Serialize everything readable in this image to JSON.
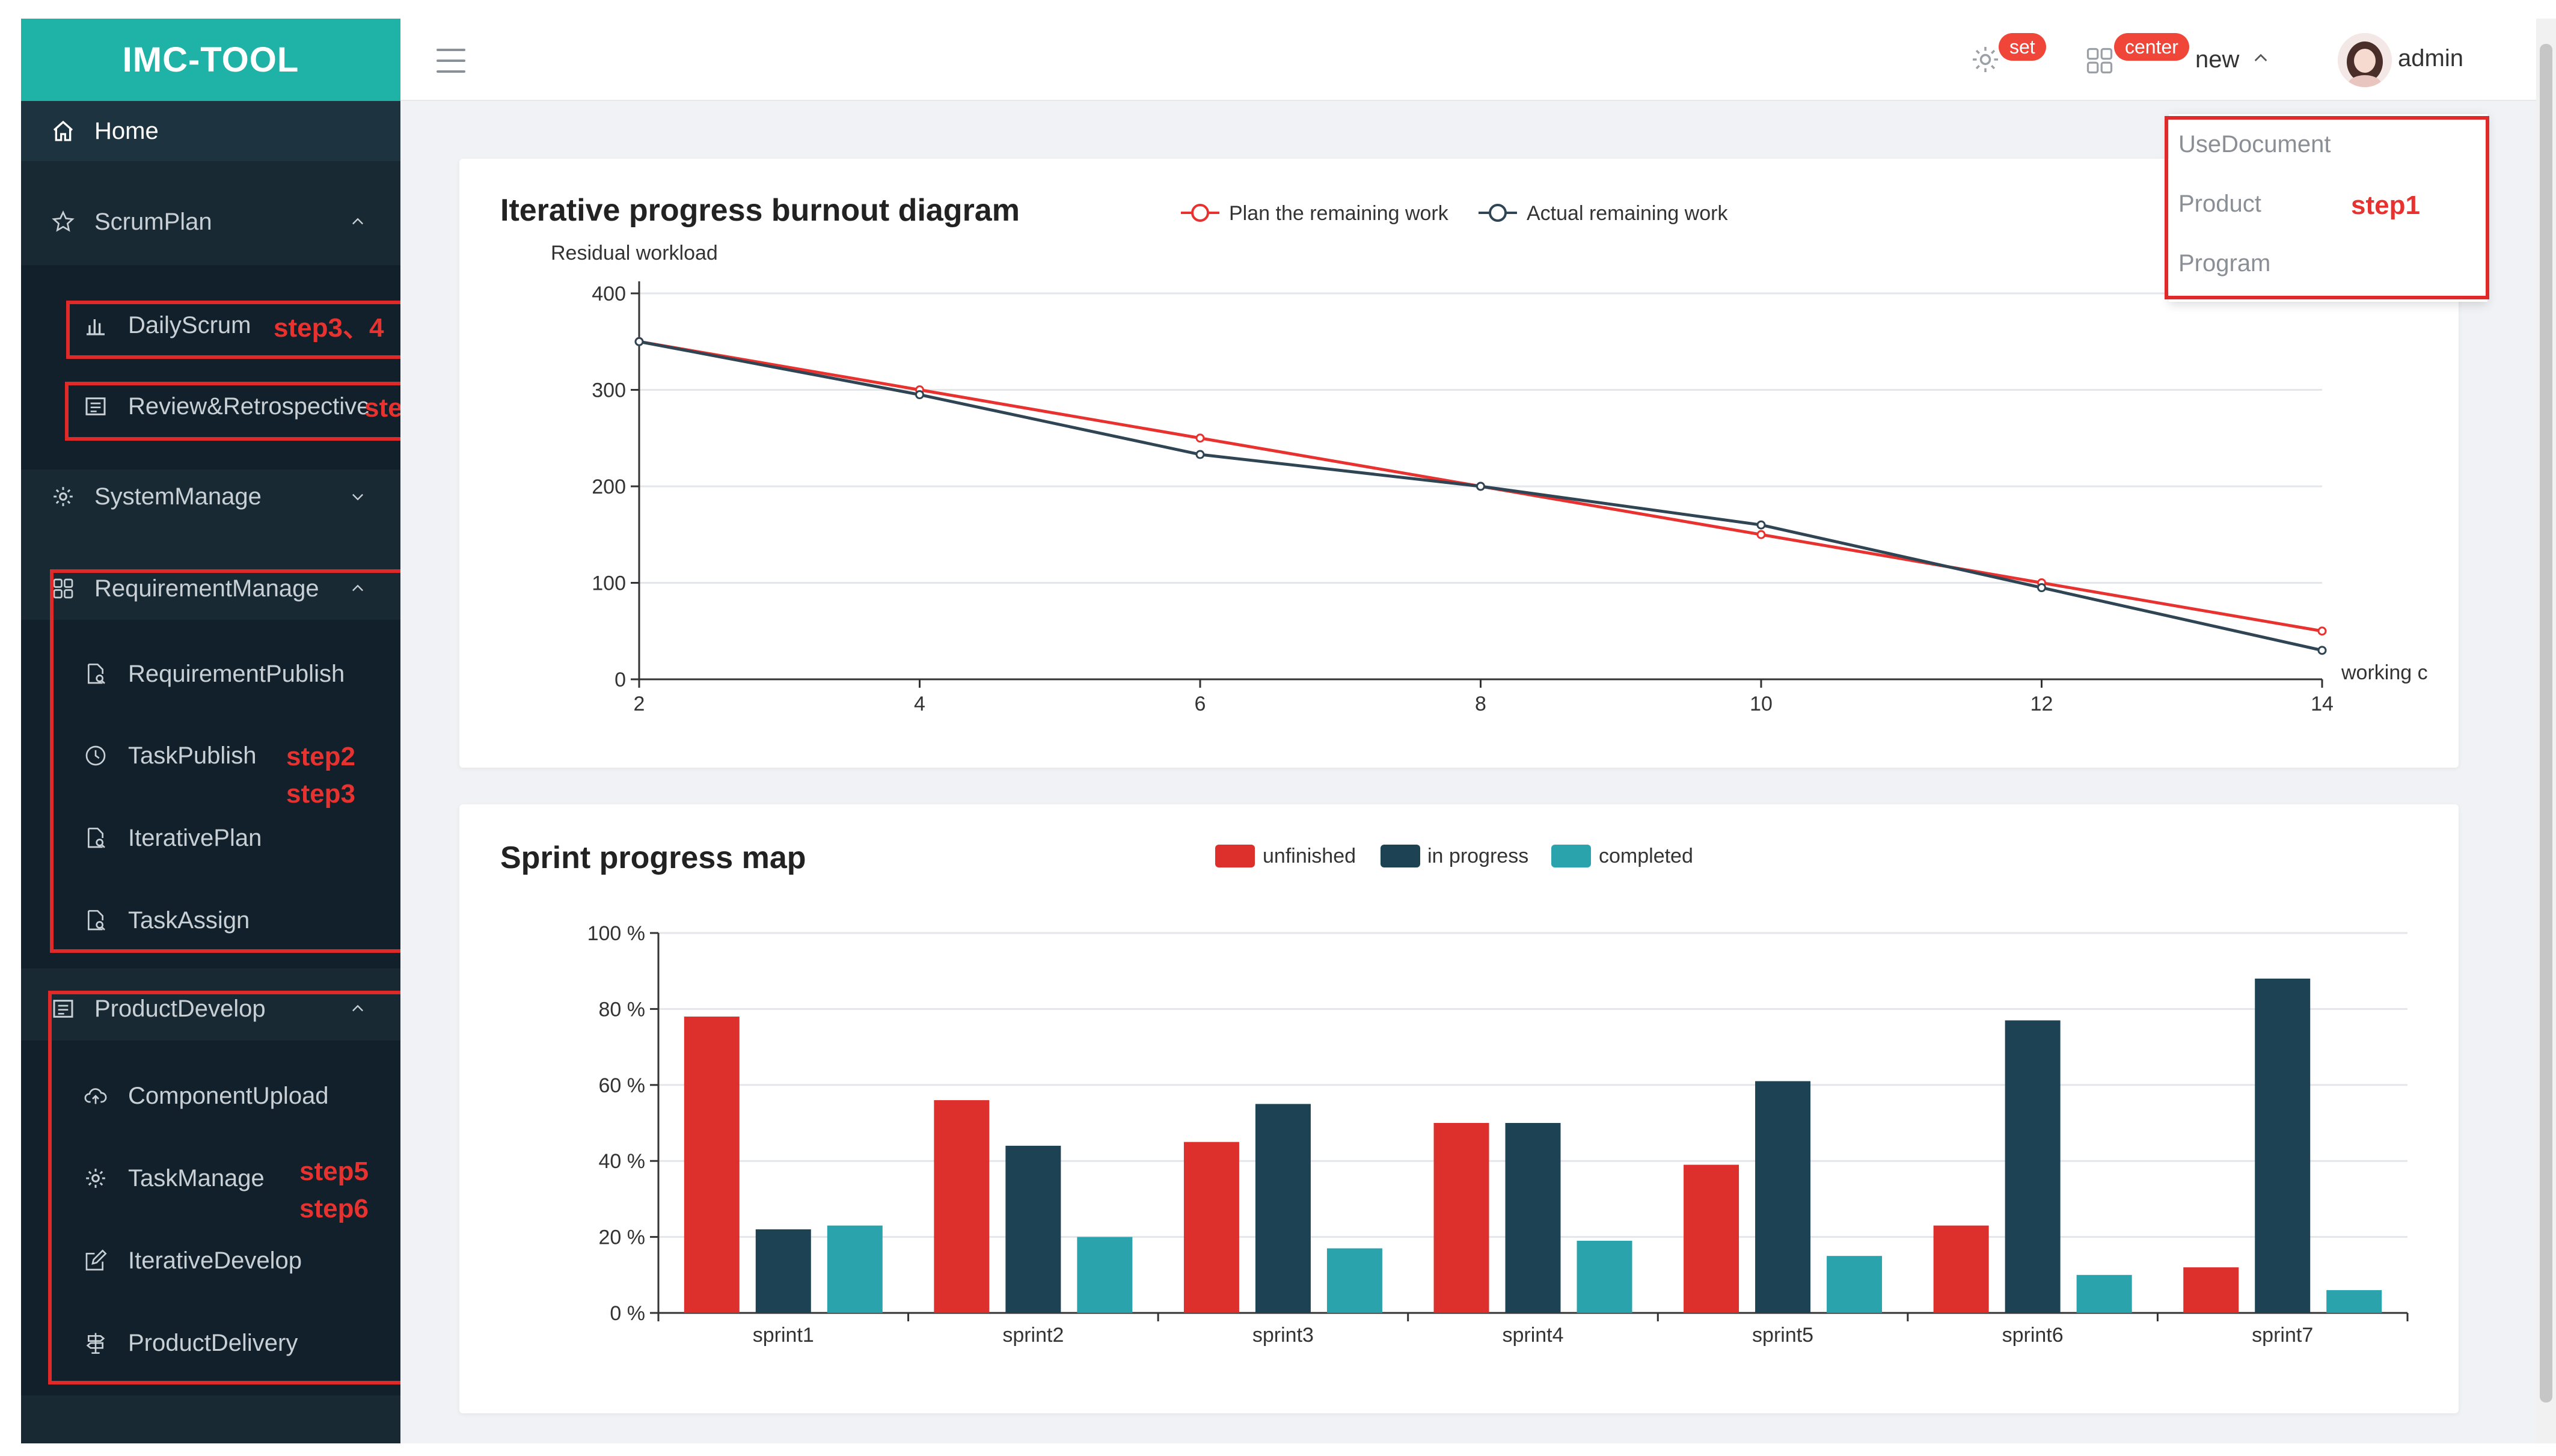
{
  "app": {
    "title": "IMC-TOOL"
  },
  "sidebar": {
    "home": "Home",
    "scrum_plan": {
      "label": "ScrumPlan",
      "items": [
        "DailyScrum",
        "Review&Retrospective"
      ]
    },
    "system_manage": "SystemManage",
    "requirement_manage": {
      "label": "RequirementManage",
      "items": [
        "RequirementPublish",
        "TaskPublish",
        "IterativePlan",
        "TaskAssign"
      ]
    },
    "product_develop": {
      "label": "ProductDevelop",
      "items": [
        "ComponentUpload",
        "TaskManage",
        "IterativeDevelop",
        "ProductDelivery"
      ]
    }
  },
  "annotations": {
    "step1": "step1",
    "step2": "step2",
    "step3": "step3",
    "step34": "step3、4",
    "step5": "step5",
    "step6": "step6"
  },
  "header": {
    "set_badge": "set",
    "center_badge": "center",
    "new_label": "new",
    "user_name": "admin"
  },
  "dropdown": {
    "items": [
      "UseDocument",
      "Product",
      "Program"
    ]
  },
  "colors": {
    "sidebar_bg": "#182933",
    "logo_bg": "#1eb3a6",
    "plan_line": "#e8322f",
    "actual_line": "#2f4554",
    "unfinished": "#dd302c",
    "in_progress": "#1c4254",
    "completed": "#2ba3ad",
    "annotation_red": "#e02a2a"
  },
  "chart_data": [
    {
      "type": "line",
      "title": "Iterative progress burnout diagram",
      "ylabel": "Residual workload",
      "xlabel": "working c",
      "x": [
        2,
        4,
        6,
        8,
        10,
        12,
        14
      ],
      "ylim": [
        0,
        400
      ],
      "yticks": [
        0,
        100,
        200,
        300,
        400
      ],
      "series": [
        {
          "name": "Plan the remaining work",
          "values": [
            350,
            300,
            250,
            200,
            150,
            100,
            50
          ]
        },
        {
          "name": "Actual remaining work",
          "values": [
            350,
            295,
            233,
            200,
            160,
            95,
            30
          ]
        }
      ]
    },
    {
      "type": "bar",
      "title": "Sprint progress map",
      "categories": [
        "sprint1",
        "sprint2",
        "sprint3",
        "sprint4",
        "sprint5",
        "sprint6",
        "sprint7"
      ],
      "ylim": [
        0,
        100
      ],
      "yticks": [
        "0 %",
        "20 %",
        "40 %",
        "60 %",
        "80 %",
        "100 %"
      ],
      "series": [
        {
          "name": "unfinished",
          "values": [
            78,
            56,
            45,
            50,
            39,
            23,
            12
          ]
        },
        {
          "name": "in progress",
          "values": [
            22,
            44,
            55,
            50,
            61,
            77,
            88
          ]
        },
        {
          "name": "completed",
          "values": [
            23,
            20,
            17,
            19,
            15,
            10,
            6
          ]
        }
      ]
    }
  ]
}
